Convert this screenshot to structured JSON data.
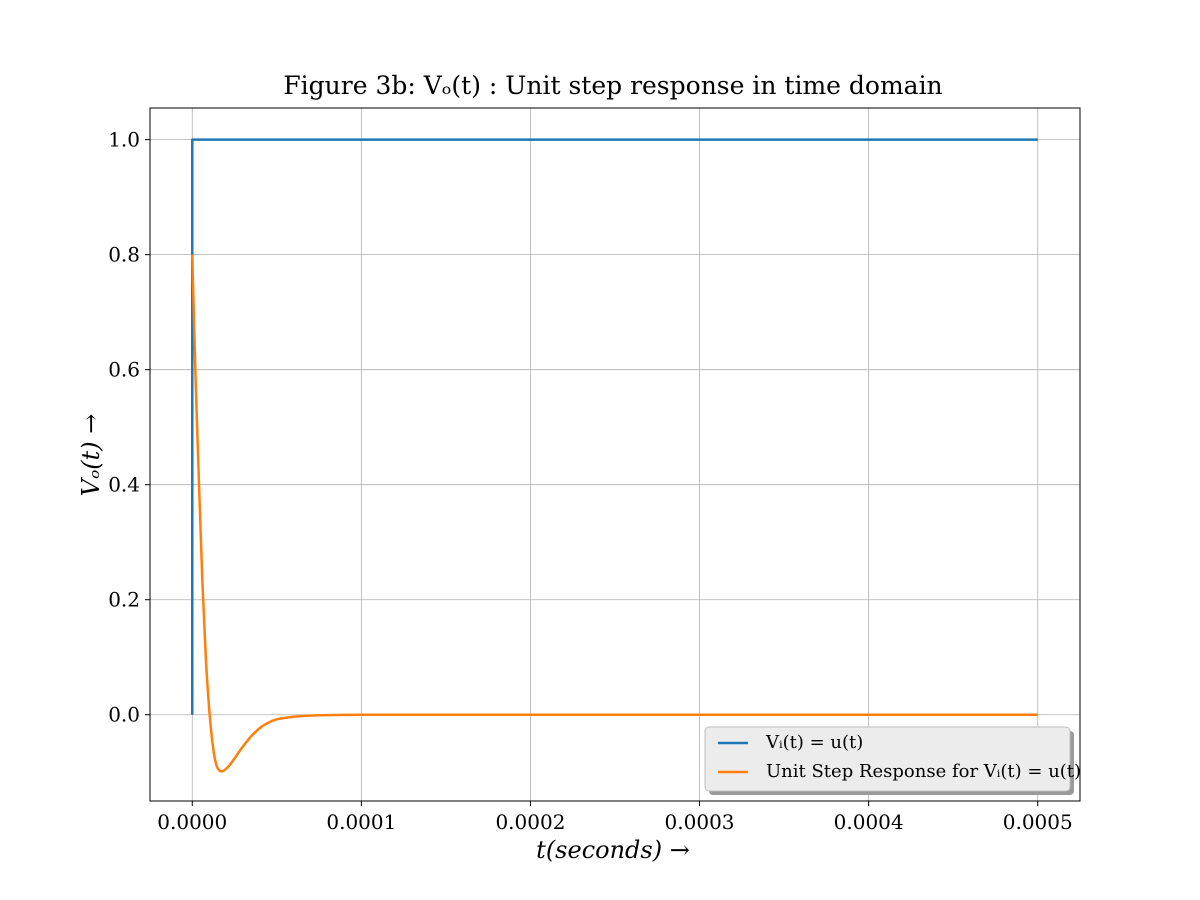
{
  "chart_data": {
    "type": "line",
    "title": "Figure 3b: Vₒ(t) : Unit step response in time domain",
    "xlabel": "t(seconds) →",
    "ylabel": "Vₒ(t) →",
    "xlim": [
      -2.5e-05,
      0.000525
    ],
    "ylim": [
      -0.15,
      1.055
    ],
    "x_ticks": [
      "0.0000",
      "0.0001",
      "0.0002",
      "0.0003",
      "0.0004",
      "0.0005"
    ],
    "x_tick_values": [
      0,
      0.0001,
      0.0002,
      0.0003,
      0.0004,
      0.0005
    ],
    "y_ticks": [
      "0.0",
      "0.2",
      "0.4",
      "0.6",
      "0.8",
      "1.0"
    ],
    "y_tick_values": [
      0,
      0.2,
      0.4,
      0.6,
      0.8,
      1.0
    ],
    "grid": true,
    "legend_position": "lower-right",
    "series": [
      {
        "name": "Vᵢ(t) = u(t)",
        "color": "#1f77b4",
        "x": [
          0,
          0,
          0.0005
        ],
        "y": [
          0,
          1,
          1
        ]
      },
      {
        "name": "Unit Step Response for Vᵢ(t) = u(t)",
        "color": "#ff7f0e",
        "x": [
          0,
          2e-06,
          4e-06,
          6e-06,
          8e-06,
          1e-05,
          1.2e-05,
          1.4e-05,
          1.6e-05,
          1.8e-05,
          2e-05,
          2.2e-05,
          2.5e-05,
          3e-05,
          3.5e-05,
          4e-05,
          4.5e-05,
          5e-05,
          6e-05,
          7e-05,
          8e-05,
          9e-05,
          0.0001,
          0.00012,
          0.00015,
          0.0002,
          0.0003,
          0.0004,
          0.0005
        ],
        "y": [
          0.8,
          0.58,
          0.4,
          0.23,
          0.1,
          0.01,
          -0.05,
          -0.085,
          -0.097,
          -0.098,
          -0.094,
          -0.088,
          -0.076,
          -0.055,
          -0.037,
          -0.023,
          -0.014,
          -0.008,
          -0.0035,
          -0.0015,
          -0.0007,
          -0.0003,
          -0.0001,
          0,
          0,
          0,
          0,
          0,
          0
        ]
      }
    ]
  }
}
